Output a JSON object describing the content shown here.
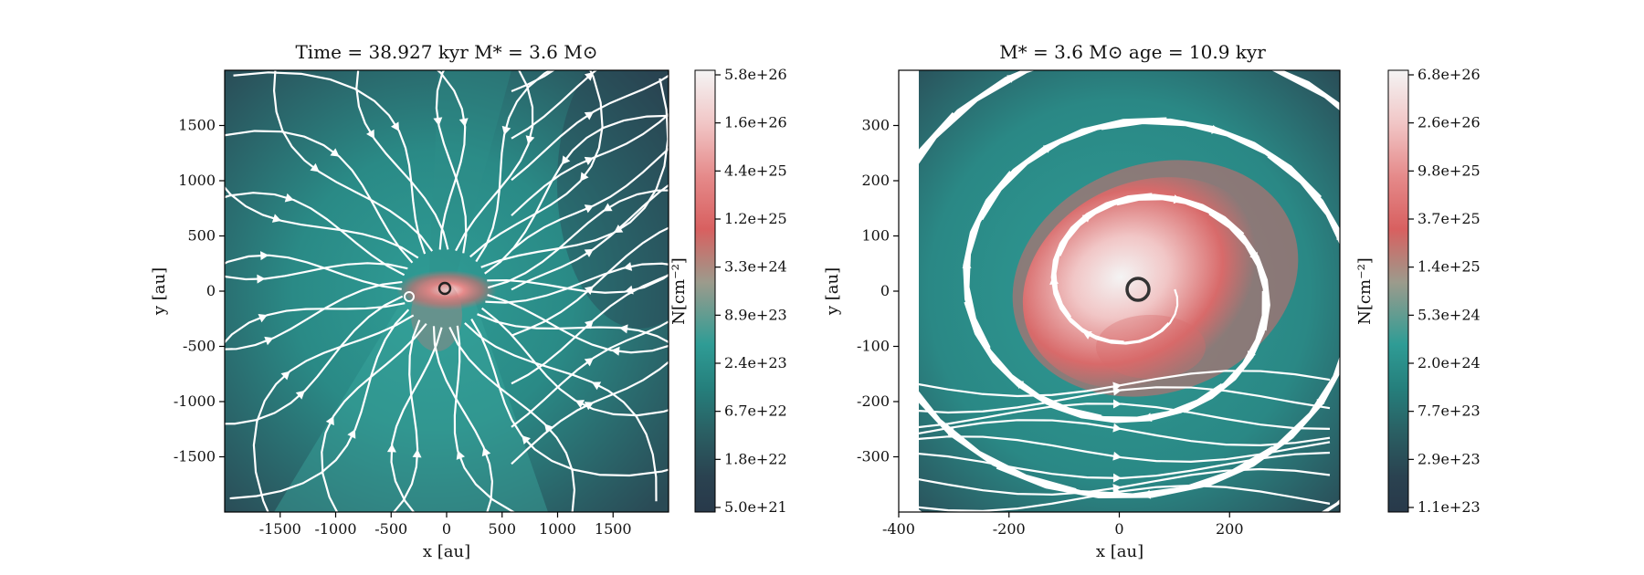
{
  "chart_data": [
    {
      "type": "heatmap",
      "title": "Time = 38.927 kyr    M* = 3.6 M⊙",
      "title_parts": {
        "time": "Time = 38.927 kyr",
        "mass": "M* = 3.6 M⊙"
      },
      "xlabel": "x [au]",
      "ylabel": "y [au]",
      "xlim": [
        -2000,
        2000
      ],
      "ylim": [
        -2000,
        2000
      ],
      "xticks": [
        -1500,
        -1000,
        -500,
        0,
        500,
        1000,
        1500
      ],
      "yticks": [
        -1500,
        -1000,
        -500,
        0,
        500,
        1000,
        1500
      ],
      "colorbar": {
        "label": "N[cm⁻²]",
        "ticks": [
          "5.8e+26",
          "1.6e+26",
          "4.4e+25",
          "1.2e+25",
          "3.3e+24",
          "8.9e+23",
          "2.4e+23",
          "6.7e+22",
          "1.8e+22",
          "5.0e+21"
        ],
        "colors": [
          "#f4f4f4",
          "#f1c6c6",
          "#e58a8a",
          "#d86060",
          "#9c9b8c",
          "#3a9a94",
          "#257f7c",
          "#2a5f63",
          "#2a4250",
          "#28394a"
        ]
      },
      "features": "column density map with white magnetic streamlines; dense elongated red clump at origin"
    },
    {
      "type": "heatmap",
      "title": "M* = 3.6 M⊙          age = 10.9 kyr",
      "title_parts": {
        "mass": "M* = 3.6 M⊙",
        "age": "age = 10.9 kyr"
      },
      "xlabel": "x [au]",
      "ylabel": "y [au]",
      "xlim": [
        -400,
        400
      ],
      "ylim": [
        -400,
        400
      ],
      "xticks": [
        -400,
        -200,
        0,
        200
      ],
      "yticks": [
        -300,
        -200,
        -100,
        0,
        100,
        200,
        300
      ],
      "colorbar": {
        "label": "N[cm⁻²]",
        "ticks": [
          "6.8e+26",
          "2.6e+26",
          "9.8e+25",
          "3.7e+25",
          "1.4e+25",
          "5.3e+24",
          "2.0e+24",
          "7.7e+23",
          "2.9e+23",
          "1.1e+23"
        ],
        "colors": [
          "#f4f4f4",
          "#f1c6c6",
          "#e58a8a",
          "#d86060",
          "#9c9b8c",
          "#3a9a94",
          "#257f7c",
          "#2a5f63",
          "#2a4250",
          "#28394a"
        ]
      },
      "features": "column density map with swirling white velocity streamlines; red disk centred near origin with sink ring at (0,0)"
    }
  ]
}
